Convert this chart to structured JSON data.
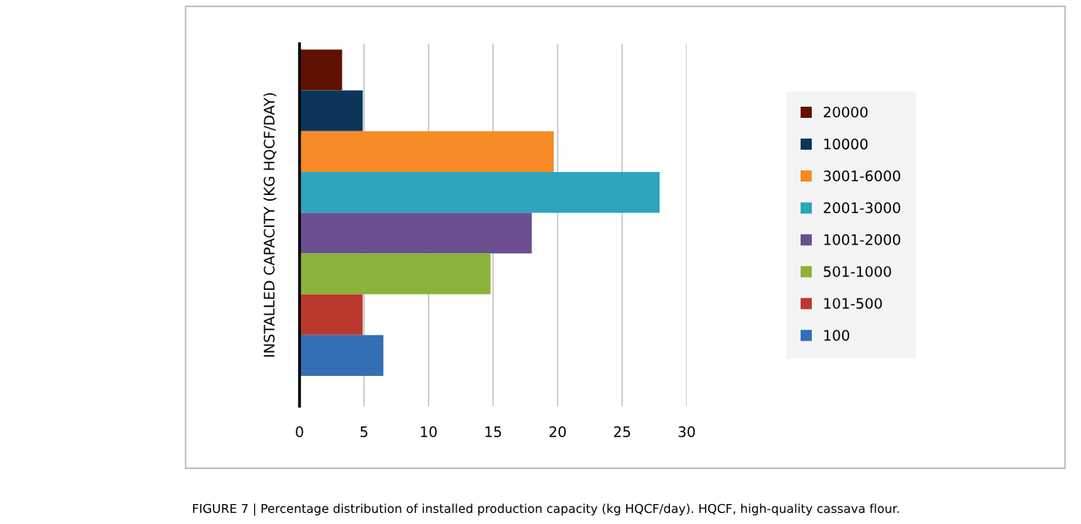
{
  "chart_data": {
    "type": "bar",
    "orientation": "horizontal",
    "ylabel": "INSTALLED CAPACITY (KG HQCF/DAY)",
    "categories": [
      null
    ],
    "series": [
      {
        "name": "20000",
        "color": "#611100",
        "values": [
          3.3
        ]
      },
      {
        "name": "10000",
        "color": "#0b3559",
        "values": [
          4.9
        ]
      },
      {
        "name": "3001-6000",
        "color": "#f58a26",
        "values": [
          19.7
        ]
      },
      {
        "name": "2001-3000",
        "color": "#2ea4bd",
        "values": [
          27.9
        ]
      },
      {
        "name": "1001-2000",
        "color": "#6b4f91",
        "values": [
          18.0
        ]
      },
      {
        "name": "501-1000",
        "color": "#8bb239",
        "values": [
          14.8
        ]
      },
      {
        "name": "101-500",
        "color": "#bb392c",
        "values": [
          4.9
        ]
      },
      {
        "name": "100",
        "color": "#3270b3",
        "values": [
          6.5
        ]
      }
    ],
    "xlim": [
      0,
      30
    ],
    "xticks": [
      0,
      5,
      10,
      15,
      20,
      25,
      30
    ],
    "grid": "x",
    "legend": "right",
    "annotations": [
      "FIGURE 7 | Percentage distribution of installed production capacity (kg HQCF/day). HQCF, high-quality cassava flour."
    ]
  }
}
